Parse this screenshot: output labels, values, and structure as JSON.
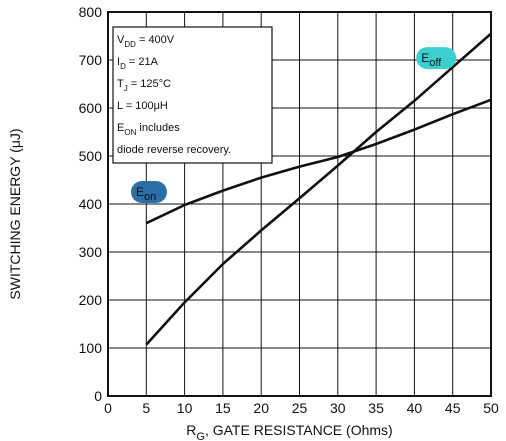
{
  "chart_data": {
    "type": "line",
    "xlabel": "R",
    "xlabel_sub": "G",
    "xlabel_rest": ", GATE RESISTANCE (Ohms)",
    "ylabel": "SWITCHING ENERGY (μJ)",
    "xlim": [
      0,
      50
    ],
    "ylim": [
      0,
      800
    ],
    "x_ticks": [
      0,
      5,
      10,
      15,
      20,
      25,
      30,
      35,
      40,
      45,
      50
    ],
    "y_ticks": [
      0,
      100,
      200,
      300,
      400,
      500,
      600,
      700,
      800
    ],
    "grid": true,
    "series": [
      {
        "name": "Eon",
        "name_main": "E",
        "name_sub": "on",
        "color": "#111111",
        "tag_color": "#2a6fa8",
        "x": [
          5,
          10,
          15,
          20,
          25,
          30,
          35,
          40,
          45,
          50
        ],
        "y": [
          360,
          398,
          428,
          455,
          478,
          498,
          525,
          555,
          587,
          617
        ]
      },
      {
        "name": "Eoff",
        "name_main": "E",
        "name_sub": "off",
        "color": "#111111",
        "tag_color": "#3ccfd0",
        "x": [
          5,
          10,
          15,
          20,
          25,
          30,
          35,
          40,
          45,
          50
        ],
        "y": [
          107,
          195,
          275,
          345,
          412,
          480,
          550,
          615,
          685,
          755
        ]
      }
    ],
    "annotation": {
      "lines": [
        {
          "main": "V",
          "sub": "DD",
          "rest": " = 400V"
        },
        {
          "main": "I",
          "sub": "D",
          "rest": " = 21A"
        },
        {
          "main": "T",
          "sub": "J",
          "rest": " = 125°C"
        },
        {
          "main": "L = 100μH",
          "sub": "",
          "rest": ""
        },
        {
          "main": "E",
          "sub": "ON",
          "rest": "  includes"
        },
        {
          "main": "diode  reverse  recovery.",
          "sub": "",
          "rest": ""
        }
      ]
    }
  }
}
